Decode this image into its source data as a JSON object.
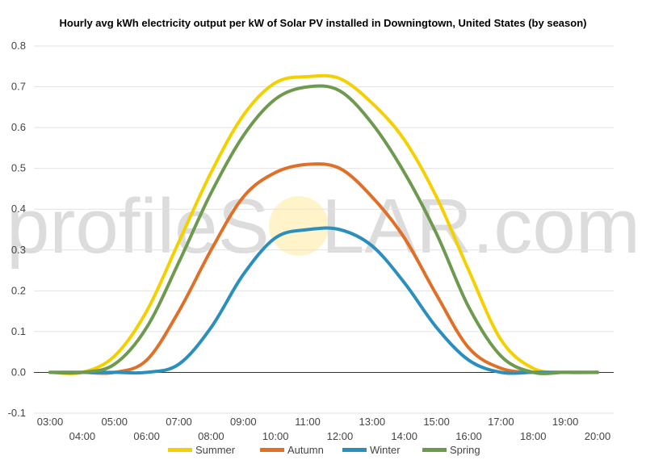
{
  "chart_data": {
    "type": "line",
    "title": "Hourly avg kWh electricity output per kW of Solar PV installed in Downingtown, United States (by season)",
    "xlabel": "",
    "ylabel": "",
    "x": [
      "03:00",
      "04:00",
      "05:00",
      "06:00",
      "07:00",
      "08:00",
      "09:00",
      "10:00",
      "11:00",
      "12:00",
      "13:00",
      "14:00",
      "15:00",
      "16:00",
      "17:00",
      "18:00",
      "19:00",
      "20:00"
    ],
    "ylim": [
      -0.1,
      0.8
    ],
    "yticks": [
      "-0.1",
      "0.0",
      "0.1",
      "0.2",
      "0.3",
      "0.4",
      "0.5",
      "0.6",
      "0.7",
      "0.8"
    ],
    "grid": true,
    "legend_position": "bottom",
    "watermark": {
      "left": "profileS",
      "right": "LAR.com"
    },
    "series": [
      {
        "name": "Summer",
        "color": "#f5d000",
        "values": [
          0.0,
          0.0,
          0.04,
          0.15,
          0.32,
          0.49,
          0.63,
          0.71,
          0.725,
          0.72,
          0.66,
          0.57,
          0.43,
          0.25,
          0.08,
          0.01,
          0.0,
          0.0
        ]
      },
      {
        "name": "Autumn",
        "color": "#e07028",
        "values": [
          0.0,
          0.0,
          0.0,
          0.03,
          0.15,
          0.3,
          0.43,
          0.49,
          0.51,
          0.5,
          0.43,
          0.33,
          0.19,
          0.06,
          0.01,
          0.0,
          0.0,
          0.0
        ]
      },
      {
        "name": "Winter",
        "color": "#2a8fbd",
        "values": [
          0.0,
          0.0,
          0.0,
          0.0,
          0.02,
          0.11,
          0.24,
          0.33,
          0.35,
          0.35,
          0.31,
          0.22,
          0.11,
          0.03,
          0.0,
          0.0,
          0.0,
          0.0
        ]
      },
      {
        "name": "Spring",
        "color": "#6d9a4f",
        "values": [
          0.0,
          0.0,
          0.02,
          0.11,
          0.27,
          0.44,
          0.58,
          0.67,
          0.7,
          0.69,
          0.61,
          0.49,
          0.34,
          0.16,
          0.04,
          0.0,
          0.0,
          0.0
        ]
      }
    ]
  }
}
